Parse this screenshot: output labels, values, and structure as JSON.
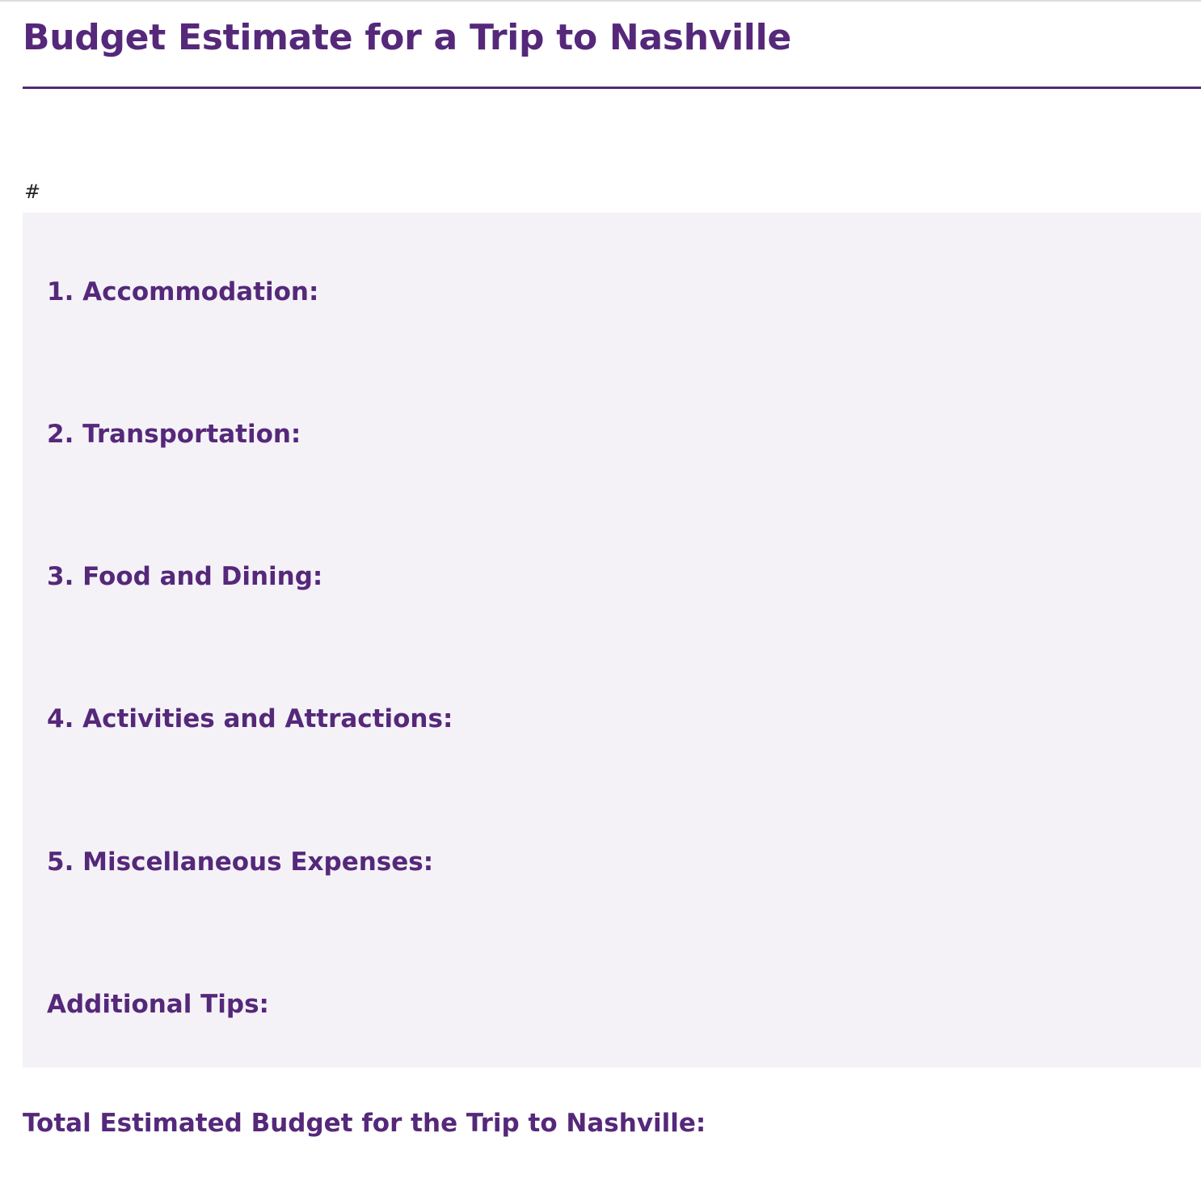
{
  "document": {
    "title": "Budget Estimate for a Trip to Nashville",
    "stray_text": "#",
    "sections": [
      {
        "heading": "1. Accommodation:"
      },
      {
        "heading": "2. Transportation:"
      },
      {
        "heading": "3. Food and Dining:"
      },
      {
        "heading": "4. Activities and Attractions:"
      },
      {
        "heading": "5. Miscellaneous Expenses:"
      },
      {
        "heading": "Additional Tips:"
      }
    ],
    "total_heading": "Total Estimated Budget for the Trip to Nashville:"
  },
  "colors": {
    "accent": "#55287a",
    "panel_background": "#f4f2f7",
    "text": "#222222"
  }
}
